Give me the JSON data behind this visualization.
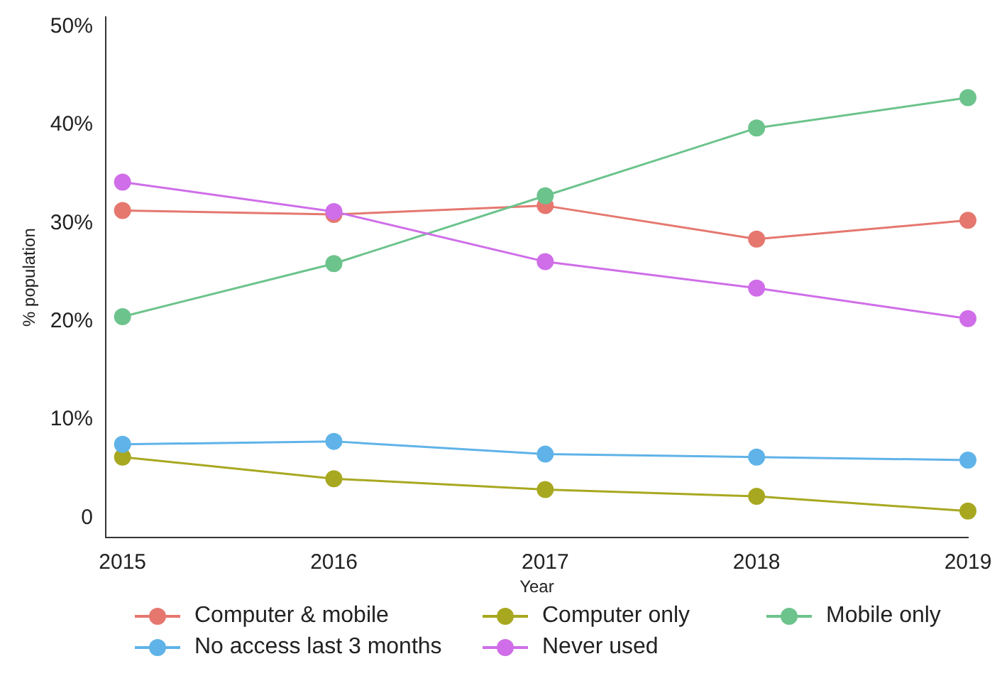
{
  "chart_data": {
    "type": "line",
    "xlabel": "Year",
    "ylabel": "% population",
    "x": [
      2015,
      2016,
      2017,
      2018,
      2019
    ],
    "xlim": [
      2014.92,
      2019
    ],
    "xticks": [
      2015,
      2016,
      2017,
      2018,
      2019
    ],
    "ylim": [
      -2,
      51
    ],
    "yticks": [
      0,
      {
        "value": 10,
        "label": "10%"
      },
      {
        "value": 20,
        "label": "20%"
      },
      {
        "value": 30,
        "label": "30%"
      },
      {
        "value": 40,
        "label": "40%"
      },
      {
        "value": 50,
        "label": "50%"
      }
    ],
    "grid": false,
    "legend": "bottom",
    "marker": "circle",
    "line_style": "solid",
    "series": [
      {
        "name": "Computer & mobile",
        "color": "#e5776f",
        "values": [
          31.3,
          30.9,
          31.8,
          28.4,
          30.3
        ]
      },
      {
        "name": "Computer only",
        "color": "#a8a820",
        "values": [
          6.2,
          4.0,
          2.9,
          2.2,
          0.7
        ]
      },
      {
        "name": "Mobile only",
        "color": "#6cc38c",
        "values": [
          20.5,
          25.9,
          32.8,
          39.7,
          42.8
        ]
      },
      {
        "name": "No access last 3 months",
        "color": "#5fb3e8",
        "values": [
          7.5,
          7.8,
          6.5,
          6.2,
          5.9
        ]
      },
      {
        "name": "Never used",
        "color": "#cf6ee8",
        "values": [
          34.2,
          31.2,
          26.1,
          23.4,
          20.3
        ]
      }
    ]
  }
}
